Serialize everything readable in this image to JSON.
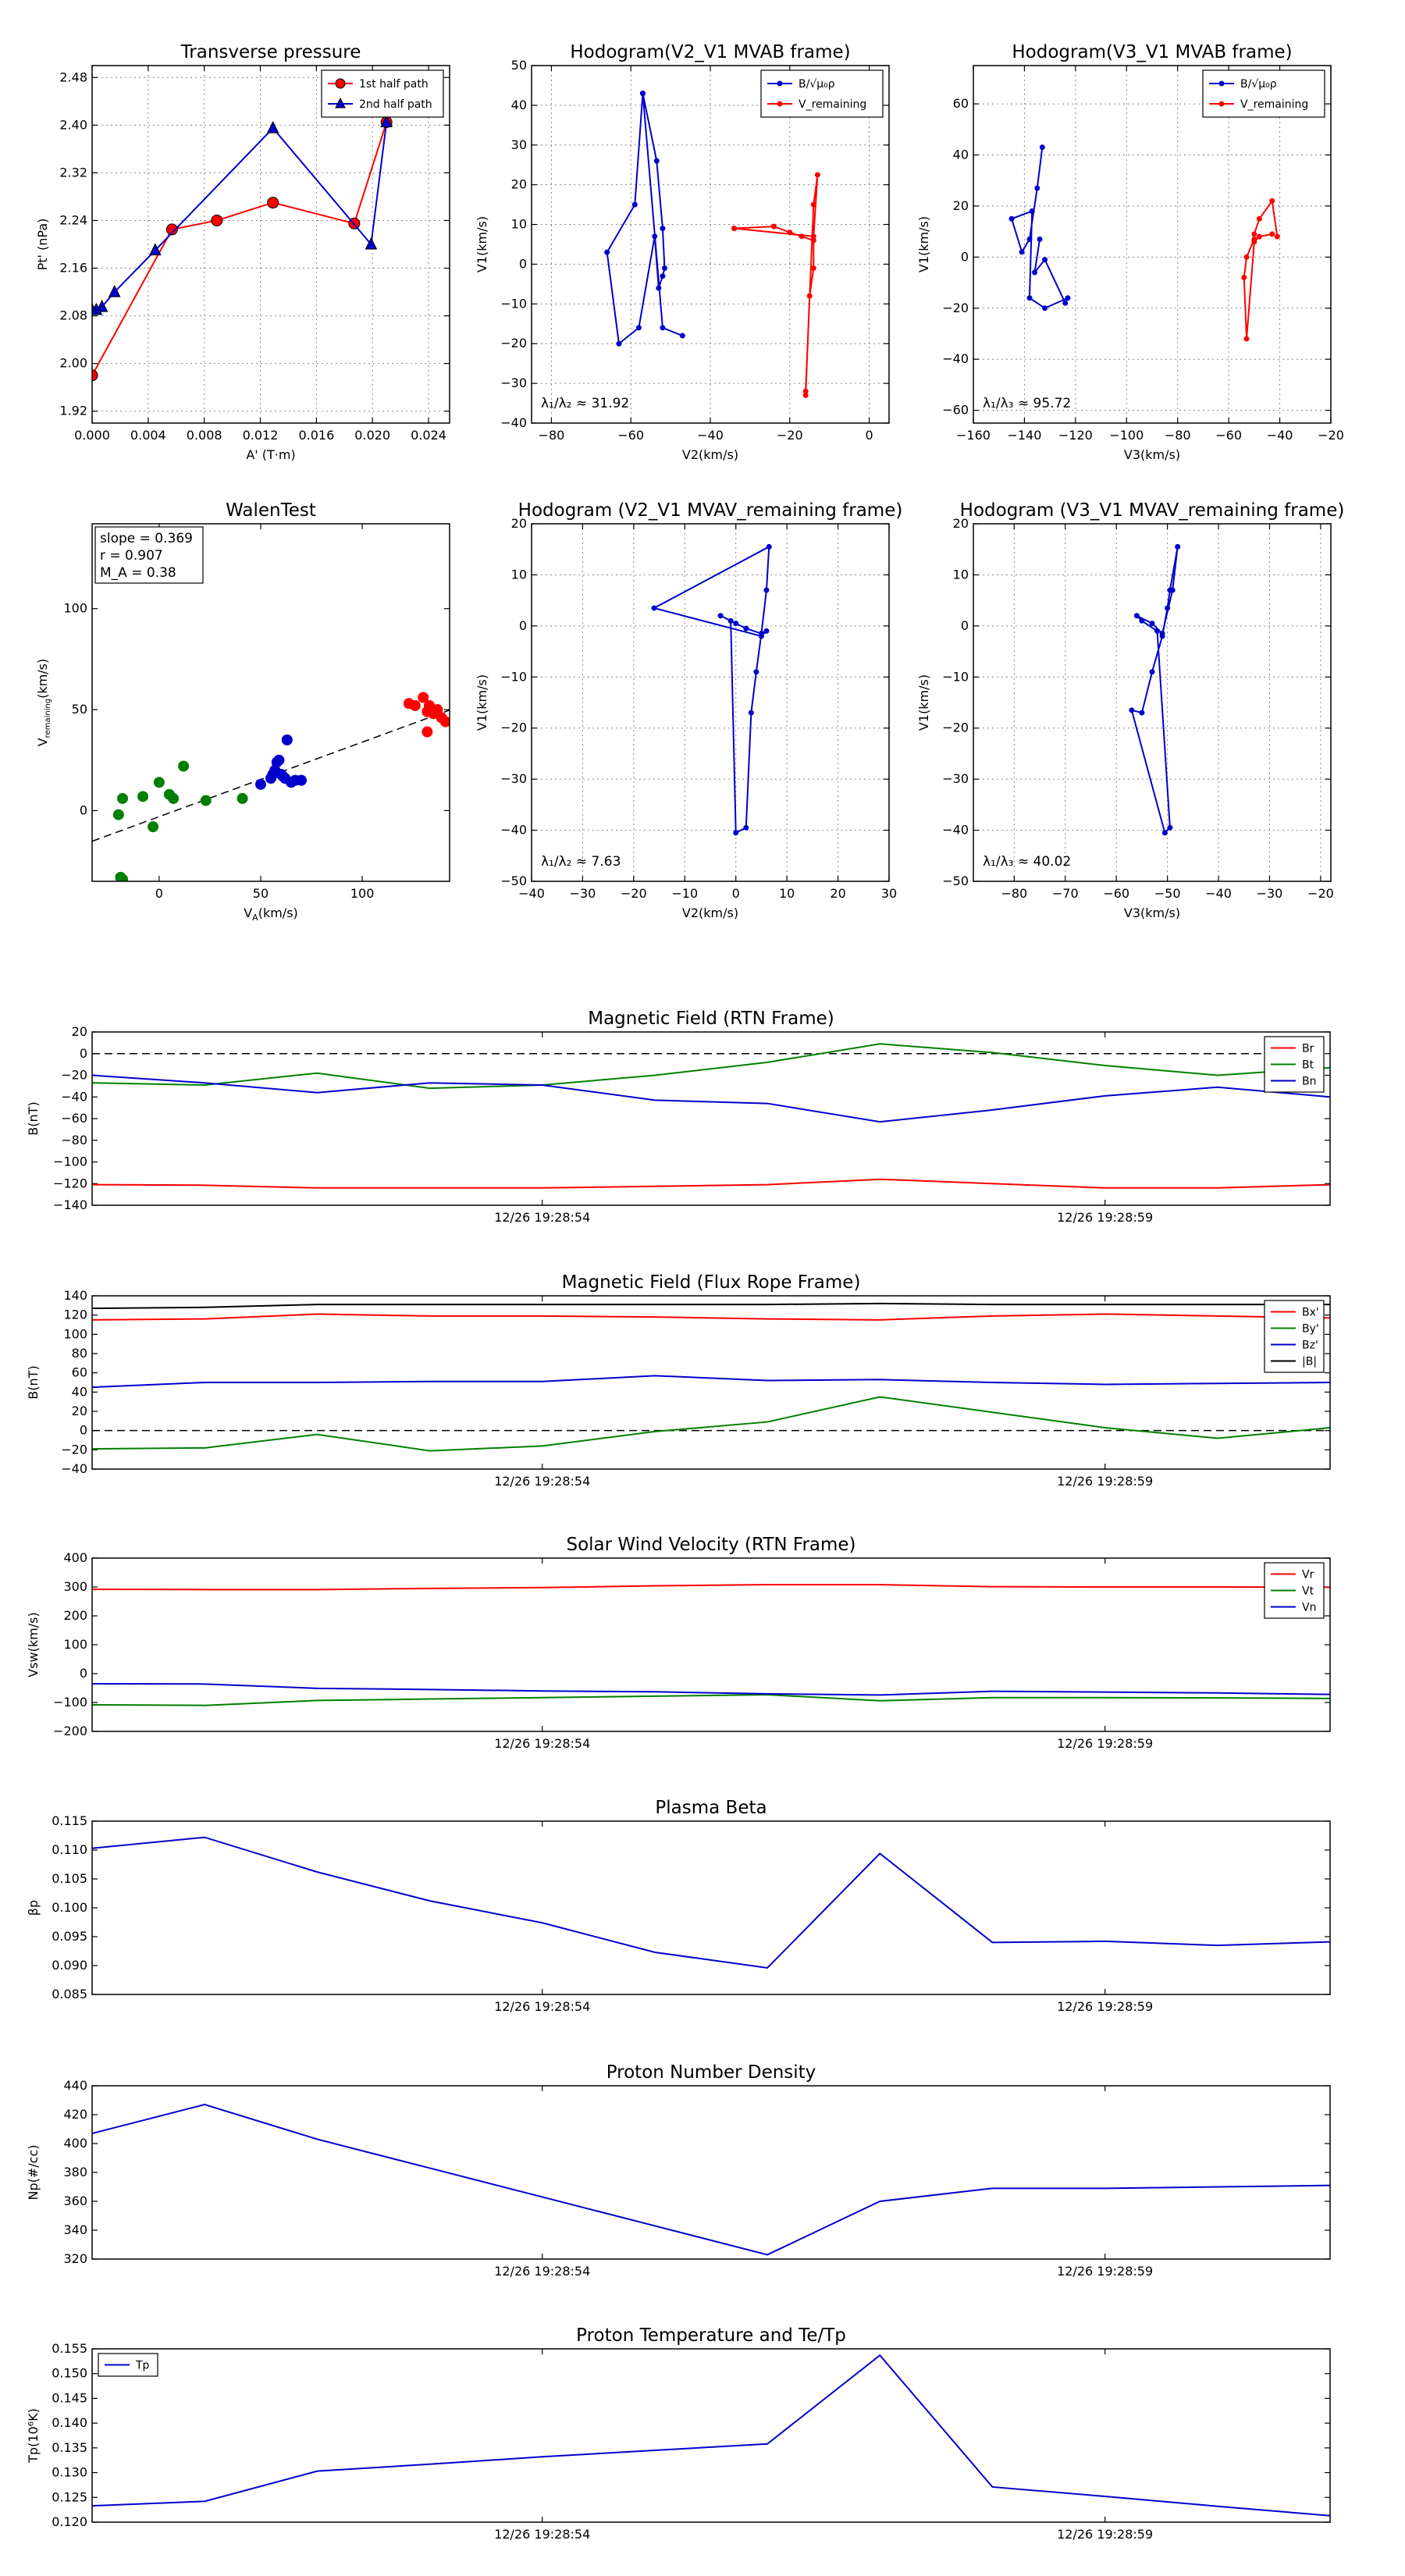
{
  "chart_data": [
    {
      "id": "pt",
      "type": "line",
      "title": "Transverse pressure",
      "xlabel": "A' (T·m)",
      "ylabel": "Pt' (nPa)",
      "xlim": [
        0.0,
        0.0255
      ],
      "ylim": [
        1.9,
        2.5
      ],
      "xticks": [
        0.0,
        0.004,
        0.008,
        0.012,
        0.016,
        0.02,
        0.024
      ],
      "xticklabels": [
        "0.000",
        "0.004",
        "0.008",
        "0.012",
        "0.016",
        "0.020",
        "0.024"
      ],
      "yticks": [
        1.92,
        2.0,
        2.08,
        2.16,
        2.24,
        2.32,
        2.4,
        2.48
      ],
      "yticklabels": [
        "1.92",
        "2.00",
        "2.08",
        "2.16",
        "2.24",
        "2.32",
        "2.40",
        "2.48"
      ],
      "grid": true,
      "legend": "top-right",
      "series": [
        {
          "name": "1st half path",
          "color": "#ff0000",
          "marker": "circle",
          "x": [
            0.0,
            0.0057,
            0.0089,
            0.0129,
            0.0187,
            0.021
          ],
          "y": [
            1.98,
            2.225,
            2.24,
            2.27,
            2.235,
            2.405
          ]
        },
        {
          "name": "2nd half path",
          "color": "#0000cc",
          "marker": "triangle",
          "x": [
            0.021,
            0.0199,
            0.0129,
            0.0045,
            0.0016,
            0.0007,
            0.0003,
            0.0
          ],
          "y": [
            2.405,
            2.2,
            2.395,
            2.19,
            2.12,
            2.095,
            2.09,
            2.09
          ]
        }
      ]
    },
    {
      "id": "h1",
      "type": "line",
      "title": "Hodogram(V2_V1 MVAB frame)",
      "xlabel": "V2(km/s)",
      "ylabel": "V1(km/s)",
      "xlim": [
        -85,
        5
      ],
      "ylim": [
        -40,
        50
      ],
      "xticks": [
        -80,
        -60,
        -40,
        -20,
        0
      ],
      "xticklabels": [
        "−80",
        "−60",
        "−40",
        "−20",
        "0"
      ],
      "yticks": [
        -40,
        -30,
        -20,
        -10,
        0,
        10,
        20,
        30,
        40,
        50
      ],
      "yticklabels": [
        "−40",
        "−30",
        "−20",
        "−10",
        "0",
        "10",
        "20",
        "30",
        "40",
        "50"
      ],
      "grid": true,
      "legend": "top-right",
      "annotation": "λ₁/λ₂ ≈ 31.92",
      "series": [
        {
          "name": "B/√μ₀ρ",
          "color": "#0000cc",
          "marker": "dot",
          "x": [
            -57,
            -53.5,
            -52,
            -51.5,
            -52,
            -53,
            -54,
            -58,
            -63,
            -66,
            -59,
            -57,
            -52,
            -47
          ],
          "y": [
            43,
            26,
            9,
            -1,
            -3,
            -6,
            7,
            -16,
            -20,
            3,
            15,
            43,
            -16,
            -18
          ]
        },
        {
          "name": "V_remaining",
          "color": "#ff0000",
          "marker": "dot",
          "x": [
            -34,
            -24,
            -20,
            -17,
            -14,
            -14,
            -15,
            -16,
            -16,
            -14,
            -13,
            -14,
            -34
          ],
          "y": [
            9,
            9.5,
            8,
            7,
            6,
            -1,
            -8,
            -33,
            -32,
            15,
            22.5,
            7,
            9
          ]
        }
      ]
    },
    {
      "id": "h2",
      "type": "line",
      "title": "Hodogram(V3_V1 MVAB frame)",
      "xlabel": "V3(km/s)",
      "ylabel": "V1(km/s)",
      "xlim": [
        -160,
        -20
      ],
      "ylim": [
        -65,
        75
      ],
      "xticks": [
        -160,
        -140,
        -120,
        -100,
        -80,
        -60,
        -40,
        -20
      ],
      "xticklabels": [
        "−160",
        "−140",
        "−120",
        "−100",
        "−80",
        "−60",
        "−40",
        "−20"
      ],
      "yticks": [
        -60,
        -40,
        -20,
        0,
        20,
        40,
        60
      ],
      "yticklabels": [
        "−60",
        "−40",
        "−20",
        "0",
        "20",
        "40",
        "60"
      ],
      "grid": true,
      "legend": "top-right",
      "annotation": "λ₁/λ₃ ≈ 95.72",
      "series": [
        {
          "name": "B/√μ₀ρ",
          "color": "#0000cc",
          "marker": "dot",
          "x": [
            -133,
            -135,
            -138,
            -141,
            -145,
            -137,
            -138,
            -132,
            -123,
            -124,
            -132,
            -136,
            -134
          ],
          "y": [
            43,
            27,
            7,
            2,
            15,
            18,
            -16,
            -20,
            -16,
            -18,
            -1,
            -6,
            7
          ]
        },
        {
          "name": "V_remaining",
          "color": "#ff0000",
          "marker": "dot",
          "x": [
            -41,
            -43,
            -48,
            -50,
            -50,
            -53,
            -54,
            -53,
            -50,
            -48,
            -43
          ],
          "y": [
            8,
            22,
            15,
            9,
            7,
            0,
            -8,
            -32,
            6,
            8,
            9
          ]
        }
      ]
    },
    {
      "id": "walen",
      "type": "scatter",
      "title": "WalenTest",
      "xlabel": "V_A(km/s)",
      "ylabel": "V_remaining(km/s)",
      "xlim": [
        -33,
        143
      ],
      "ylim": [
        -35,
        142
      ],
      "xticks": [
        0,
        50,
        100
      ],
      "xticklabels": [
        "0",
        "50",
        "100"
      ],
      "yticks": [
        0,
        50,
        100
      ],
      "yticklabels": [
        "0",
        "50",
        "100"
      ],
      "grid": false,
      "stats": [
        "slope = 0.369",
        "r = 0.907",
        "M_A = 0.38"
      ],
      "fit": {
        "slope": 0.369,
        "intercept": -3
      },
      "series": [
        {
          "name": "green",
          "color": "#008000",
          "x": [
            -20,
            -18,
            -8,
            -3,
            0,
            5,
            7,
            12,
            23,
            41,
            -19,
            -18
          ],
          "y": [
            -2,
            6,
            7,
            -8,
            14,
            8,
            6,
            22,
            5,
            6,
            -33,
            -34
          ]
        },
        {
          "name": "blue",
          "color": "#0000cc",
          "x": [
            50,
            55,
            57,
            58,
            60,
            62,
            63,
            65,
            67,
            70,
            56,
            59,
            61
          ],
          "y": [
            13,
            16,
            20,
            24,
            18,
            16,
            35,
            14,
            15,
            15,
            18,
            25,
            17
          ]
        },
        {
          "name": "red",
          "color": "#ff0000",
          "x": [
            123,
            126,
            130,
            132,
            133,
            135,
            137,
            139,
            141,
            132
          ],
          "y": [
            53,
            52,
            56,
            49,
            52,
            48,
            50,
            46,
            44,
            39
          ]
        }
      ]
    },
    {
      "id": "h3",
      "type": "line",
      "title": "Hodogram (V2_V1 MVAV_remaining frame)",
      "xlabel": "V2(km/s)",
      "ylabel": "V1(km/s)",
      "xlim": [
        -40,
        30
      ],
      "ylim": [
        -50,
        20
      ],
      "xticks": [
        -40,
        -30,
        -20,
        -10,
        0,
        10,
        20,
        30
      ],
      "xticklabels": [
        "−40",
        "−30",
        "−20",
        "−10",
        "0",
        "10",
        "20",
        "30"
      ],
      "yticks": [
        -50,
        -40,
        -30,
        -20,
        -10,
        0,
        10,
        20
      ],
      "yticklabels": [
        "−50",
        "−40",
        "−30",
        "−20",
        "−10",
        "0",
        "10",
        "20"
      ],
      "grid": true,
      "annotation": "λ₁/λ₂ ≈ 7.63",
      "series": [
        {
          "name": "B",
          "color": "#0000cc",
          "marker": "dot",
          "x": [
            6.5,
            -16,
            5,
            6,
            5,
            4,
            3,
            2,
            0,
            -1,
            -3,
            0,
            2,
            5,
            6,
            6.5
          ],
          "y": [
            15.5,
            3.5,
            -2,
            -1,
            -1.5,
            -9,
            -17,
            -39.5,
            -40.5,
            1,
            2,
            0.5,
            -0.5,
            -1.5,
            7,
            15.5
          ]
        }
      ]
    },
    {
      "id": "h4",
      "type": "line",
      "title": "Hodogram (V3_V1 MVAV_remaining frame)",
      "xlabel": "V3(km/s)",
      "ylabel": "V1(km/s)",
      "xlim": [
        -88,
        -18
      ],
      "ylim": [
        -50,
        20
      ],
      "xticks": [
        -80,
        -70,
        -60,
        -50,
        -40,
        -30,
        -20
      ],
      "xticklabels": [
        "−80",
        "−70",
        "−60",
        "−50",
        "−40",
        "−30",
        "−20"
      ],
      "yticks": [
        -50,
        -40,
        -30,
        -20,
        -10,
        0,
        10,
        20
      ],
      "yticklabels": [
        "−50",
        "−40",
        "−30",
        "−20",
        "−10",
        "0",
        "10",
        "20"
      ],
      "grid": true,
      "annotation": "λ₁/λ₃ ≈ 40.02",
      "series": [
        {
          "name": "B",
          "color": "#0000cc",
          "marker": "dot",
          "x": [
            -48,
            -49.5,
            -50,
            -51,
            -53,
            -55,
            -57,
            -50.5,
            -49.5,
            -52,
            -55,
            -56,
            -53,
            -51,
            -49,
            -48
          ],
          "y": [
            15.5,
            7,
            3.5,
            -2,
            -9,
            -17,
            -16.5,
            -40.5,
            -39.5,
            -1,
            1,
            2,
            0.5,
            -1.5,
            7,
            15.5
          ]
        }
      ]
    },
    {
      "id": "bfield",
      "type": "line",
      "title": "Magnetic Field (RTN Frame)",
      "ylabel": "B(nT)",
      "ylim": [
        -140,
        20
      ],
      "yticks": [
        -140,
        -120,
        -100,
        -80,
        -60,
        -40,
        -20,
        0,
        20
      ],
      "yticklabels": [
        "−140",
        "−120",
        "−100",
        "−80",
        "−60",
        "−40",
        "−20",
        "0",
        "20"
      ],
      "xticklabels": [
        "12/26 19:28:54",
        "12/26 19:28:59"
      ],
      "xtick_index": [
        4,
        9
      ],
      "n_points": 12,
      "zero_line": true,
      "legend": "top-right",
      "series": [
        {
          "name": "Br",
          "color": "#ff0000",
          "values": [
            -121,
            -121.5,
            -124,
            -124,
            -124,
            -122.5,
            -121,
            -116,
            -120,
            -124,
            -124,
            -121
          ]
        },
        {
          "name": "Bt",
          "color": "#008000",
          "values": [
            -27,
            -29,
            -18,
            -32,
            -29,
            -20,
            -8,
            9,
            1,
            -11,
            -20,
            -13
          ]
        },
        {
          "name": "Bn",
          "color": "#0000cc",
          "values": [
            -20,
            -27,
            -36,
            -27,
            -29,
            -43,
            -46,
            -63,
            -52,
            -39,
            -31,
            -40
          ]
        }
      ]
    },
    {
      "id": "bfr",
      "type": "line",
      "title": "Magnetic Field (Flux Rope Frame)",
      "ylabel": "B(nT)",
      "ylim": [
        -40,
        140
      ],
      "yticks": [
        -40,
        -20,
        0,
        20,
        40,
        60,
        80,
        100,
        120,
        140
      ],
      "yticklabels": [
        "−40",
        "−20",
        "0",
        "20",
        "40",
        "60",
        "80",
        "100",
        "120",
        "140"
      ],
      "xticklabels": [
        "12/26 19:28:54",
        "12/26 19:28:59"
      ],
      "xtick_index": [
        4,
        9
      ],
      "n_points": 12,
      "zero_line": true,
      "legend": "top-right",
      "series": [
        {
          "name": "Bx'",
          "color": "#ff0000",
          "values": [
            115,
            116,
            121,
            119,
            119,
            118,
            116,
            115,
            119,
            121,
            119,
            117
          ]
        },
        {
          "name": "By'",
          "color": "#008000",
          "values": [
            -19,
            -18,
            -4,
            -21,
            -16,
            -1,
            9,
            35,
            19,
            3,
            -8,
            3
          ]
        },
        {
          "name": "Bz'",
          "color": "#0000cc",
          "values": [
            45,
            50,
            50,
            51,
            51,
            57,
            52,
            53,
            50,
            48,
            49,
            50
          ]
        },
        {
          "name": "|B|",
          "color": "#000000",
          "values": [
            127,
            128,
            131,
            131,
            131,
            131,
            131,
            132,
            131,
            131,
            131,
            131
          ]
        }
      ]
    },
    {
      "id": "vsw",
      "type": "line",
      "title": "Solar Wind Velocity (RTN Frame)",
      "ylabel": "Vsw(km/s)",
      "ylim": [
        -200,
        400
      ],
      "yticks": [
        -200,
        -100,
        0,
        100,
        200,
        300,
        400
      ],
      "yticklabels": [
        "−200",
        "−100",
        "0",
        "100",
        "200",
        "300",
        "400"
      ],
      "xticklabels": [
        "12/26 19:28:54",
        "12/26 19:28:59"
      ],
      "xtick_index": [
        4,
        9
      ],
      "n_points": 12,
      "legend": "top-right",
      "series": [
        {
          "name": "Vr",
          "color": "#ff0000",
          "values": [
            292,
            291,
            291,
            295,
            298,
            304,
            308,
            308,
            301,
            300,
            300,
            299
          ]
        },
        {
          "name": "Vt",
          "color": "#008000",
          "values": [
            -108,
            -110,
            -93,
            -88,
            -83,
            -78,
            -73,
            -94,
            -83,
            -83,
            -84,
            -86
          ]
        },
        {
          "name": "Vn",
          "color": "#0000cc",
          "values": [
            -35,
            -36,
            -51,
            -55,
            -60,
            -63,
            -70,
            -74,
            -61,
            -64,
            -67,
            -72
          ]
        }
      ]
    },
    {
      "id": "beta",
      "type": "line",
      "title": "Plasma Beta",
      "ylabel": "βp",
      "ylim": [
        0.085,
        0.115
      ],
      "yticks": [
        0.085,
        0.09,
        0.095,
        0.1,
        0.105,
        0.11,
        0.115
      ],
      "yticklabels": [
        "0.085",
        "0.090",
        "0.095",
        "0.100",
        "0.105",
        "0.110",
        "0.115"
      ],
      "xticklabels": [
        "12/26 19:28:54",
        "12/26 19:28:59"
      ],
      "xtick_index": [
        4,
        9
      ],
      "n_points": 12,
      "series": [
        {
          "name": "βp",
          "color": "#0000cc",
          "values": [
            0.1103,
            0.1122,
            0.1062,
            0.1012,
            0.0974,
            0.0923,
            0.0896,
            0.1094,
            0.094,
            0.0942,
            0.0935,
            0.0941
          ]
        }
      ]
    },
    {
      "id": "np",
      "type": "line",
      "title": "Proton Number Density",
      "ylabel": "Np(#/cc)",
      "ylim": [
        320,
        440
      ],
      "yticks": [
        320,
        340,
        360,
        380,
        400,
        420,
        440
      ],
      "yticklabels": [
        "320",
        "340",
        "360",
        "380",
        "400",
        "420",
        "440"
      ],
      "xticklabels": [
        "12/26 19:28:54",
        "12/26 19:28:59"
      ],
      "xtick_index": [
        4,
        9
      ],
      "n_points": 12,
      "series": [
        {
          "name": "Np",
          "color": "#0000cc",
          "values": [
            407,
            427,
            403,
            383,
            363,
            343,
            323,
            360,
            369,
            369,
            370,
            371
          ]
        }
      ]
    },
    {
      "id": "tp",
      "type": "line",
      "title": "Proton Temperature and Te/Tp",
      "ylabel": "Tp(10⁶K)",
      "ylim": [
        0.12,
        0.155
      ],
      "yticks": [
        0.12,
        0.125,
        0.13,
        0.135,
        0.14,
        0.145,
        0.15,
        0.155
      ],
      "yticklabels": [
        "0.120",
        "0.125",
        "0.130",
        "0.135",
        "0.140",
        "0.145",
        "0.150",
        "0.155"
      ],
      "xticklabels": [
        "12/26 19:28:54",
        "12/26 19:28:59"
      ],
      "xtick_index": [
        4,
        9
      ],
      "n_points": 12,
      "legend": "top-left",
      "series": [
        {
          "name": "Tp",
          "color": "#0000cc",
          "values": [
            0.1233,
            0.1242,
            0.1303,
            0.1317,
            0.1332,
            0.1345,
            0.1358,
            0.1537,
            0.1271,
            0.1252,
            0.1232,
            0.1213
          ]
        }
      ]
    }
  ]
}
